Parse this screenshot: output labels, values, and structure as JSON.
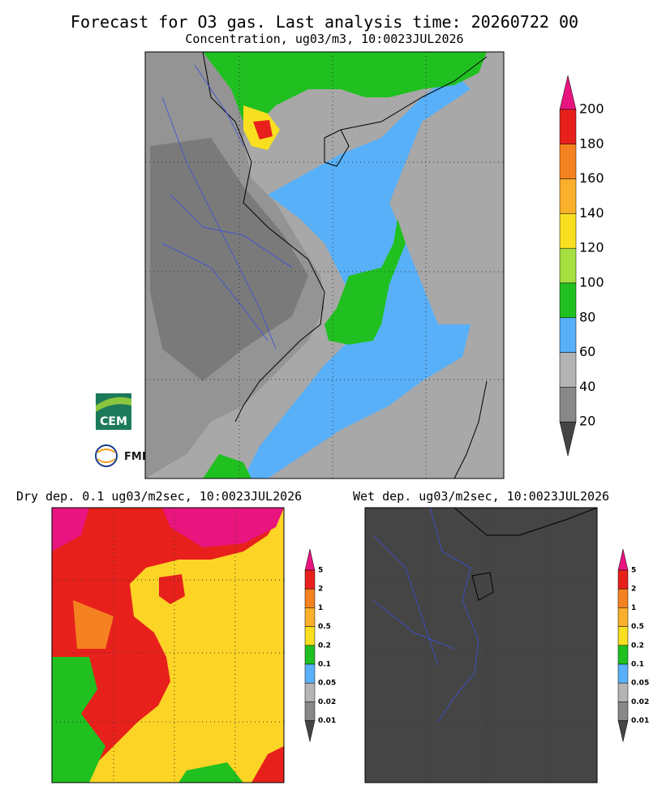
{
  "header": {
    "title": "Forecast for O3 gas. Last analysis time: 20260722 00",
    "subtitle": "Concentration, ug03/m3, 10:0023JUL2026"
  },
  "main_colorbar": {
    "labels": [
      "200",
      "180",
      "160",
      "140",
      "120",
      "100",
      "80",
      "60",
      "40",
      "20"
    ],
    "colors": [
      "#e8157f",
      "#e8201c",
      "#f58220",
      "#fbb02b",
      "#f8e020",
      "#a6e040",
      "#20c020",
      "#58b0f8",
      "#b4b4b4",
      "#888888",
      "#444444"
    ]
  },
  "dry_panel": {
    "title": "Dry dep. 0.1 ug03/m2sec, 10:0023JUL2026",
    "colorbar": {
      "labels": [
        "5",
        "2",
        "1",
        "0.5",
        "0.2",
        "0.1",
        "0.05",
        "0.02",
        "0.01"
      ],
      "colors": [
        "#e8157f",
        "#e8201c",
        "#f58220",
        "#fbb02b",
        "#f8e020",
        "#20c020",
        "#58b0f8",
        "#b4b4b4",
        "#888888",
        "#444444"
      ]
    }
  },
  "wet_panel": {
    "title": "Wet dep. ug03/m2sec, 10:0023JUL2026",
    "colorbar": {
      "labels": [
        "5",
        "2",
        "1",
        "0.5",
        "0.2",
        "0.1",
        "0.05",
        "0.02",
        "0.01"
      ],
      "colors": [
        "#e8157f",
        "#e8201c",
        "#f58220",
        "#fbb02b",
        "#f8e020",
        "#20c020",
        "#58b0f8",
        "#b4b4b4",
        "#888888",
        "#444444"
      ]
    }
  },
  "logos": {
    "cem": "CEM",
    "fmi": "FMI"
  }
}
